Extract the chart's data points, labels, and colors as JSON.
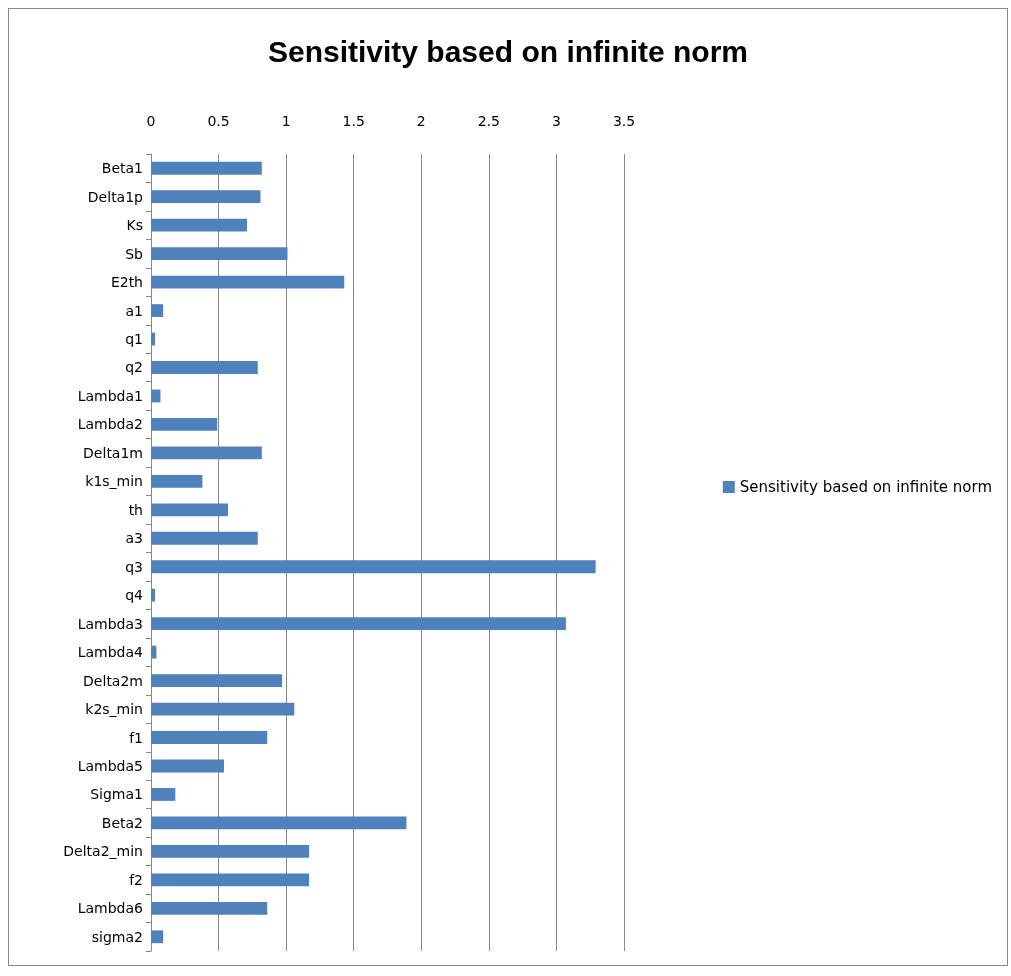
{
  "chart_data": {
    "type": "bar",
    "orientation": "horizontal",
    "title": "Sensitivity based on infinite norm",
    "categories": [
      "Beta1",
      "Delta1p",
      "Ks",
      "Sb",
      "E2th",
      "a1",
      "q1",
      "q2",
      "Lambda1",
      "Lambda2",
      "Delta1m",
      "k1s_min",
      "th",
      "a3",
      "q3",
      "q4",
      "Lambda3",
      "Lambda4",
      "Delta2m",
      "k2s_min",
      "f1",
      "Lambda5",
      "Sigma1",
      "Beta2",
      "Delta2_min",
      "f2",
      "Lambda6",
      "sigma2"
    ],
    "series": [
      {
        "name": "Sensitivity based on infinite norm",
        "color": "#4f81bd",
        "values": [
          0.82,
          0.81,
          0.71,
          1.01,
          1.43,
          0.09,
          0.03,
          0.79,
          0.07,
          0.49,
          0.82,
          0.38,
          0.57,
          0.79,
          3.29,
          0.03,
          3.07,
          0.04,
          0.97,
          1.06,
          0.86,
          0.54,
          0.18,
          1.89,
          1.17,
          1.17,
          0.86,
          0.09
        ]
      }
    ],
    "xlim": [
      0,
      3.5
    ],
    "xticks": [
      0,
      0.5,
      1,
      1.5,
      2,
      2.5,
      3,
      3.5
    ],
    "grid": "x",
    "legend": "right"
  }
}
